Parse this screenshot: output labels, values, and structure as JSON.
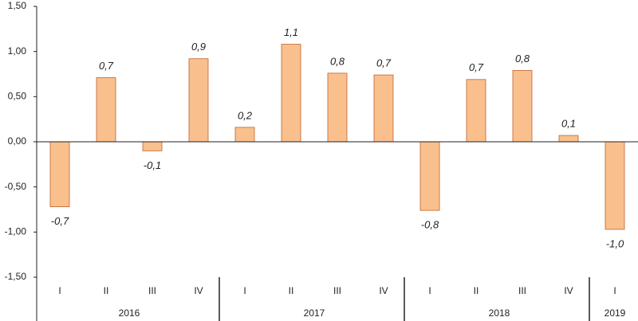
{
  "chart_data": {
    "type": "bar",
    "groups": [
      {
        "label": "2016",
        "categories": [
          "I",
          "II",
          "III",
          "IV"
        ],
        "values": [
          -0.72,
          0.71,
          -0.1,
          0.92
        ],
        "value_labels": [
          "-0,7",
          "0,7",
          "-0,1",
          "0,9"
        ]
      },
      {
        "label": "2017",
        "categories": [
          "I",
          "II",
          "III",
          "IV"
        ],
        "values": [
          0.16,
          1.08,
          0.76,
          0.74
        ],
        "value_labels": [
          "0,2",
          "1,1",
          "0,8",
          "0,7"
        ]
      },
      {
        "label": "2018",
        "categories": [
          "I",
          "II",
          "III",
          "IV"
        ],
        "values": [
          -0.76,
          0.69,
          0.79,
          0.07
        ],
        "value_labels": [
          "-0,8",
          "0,7",
          "0,8",
          "0,1"
        ]
      },
      {
        "label": "2019",
        "categories": [
          "I"
        ],
        "values": [
          -0.97
        ],
        "value_labels": [
          "-1,0"
        ]
      }
    ],
    "color": "#f9c08e",
    "ylim": [
      -1.5,
      1.5
    ],
    "yticks": [
      {
        "value": -1.5,
        "label": "-1,50"
      },
      {
        "value": -1,
        "label": "-1,00"
      },
      {
        "value": -0.5,
        "label": "-0,50"
      },
      {
        "value": 0,
        "label": "0,00"
      },
      {
        "value": 0.5,
        "label": "0,50"
      },
      {
        "value": 1,
        "label": "1,00"
      },
      {
        "value": 1.5,
        "label": "1,50"
      }
    ],
    "grid": false
  }
}
